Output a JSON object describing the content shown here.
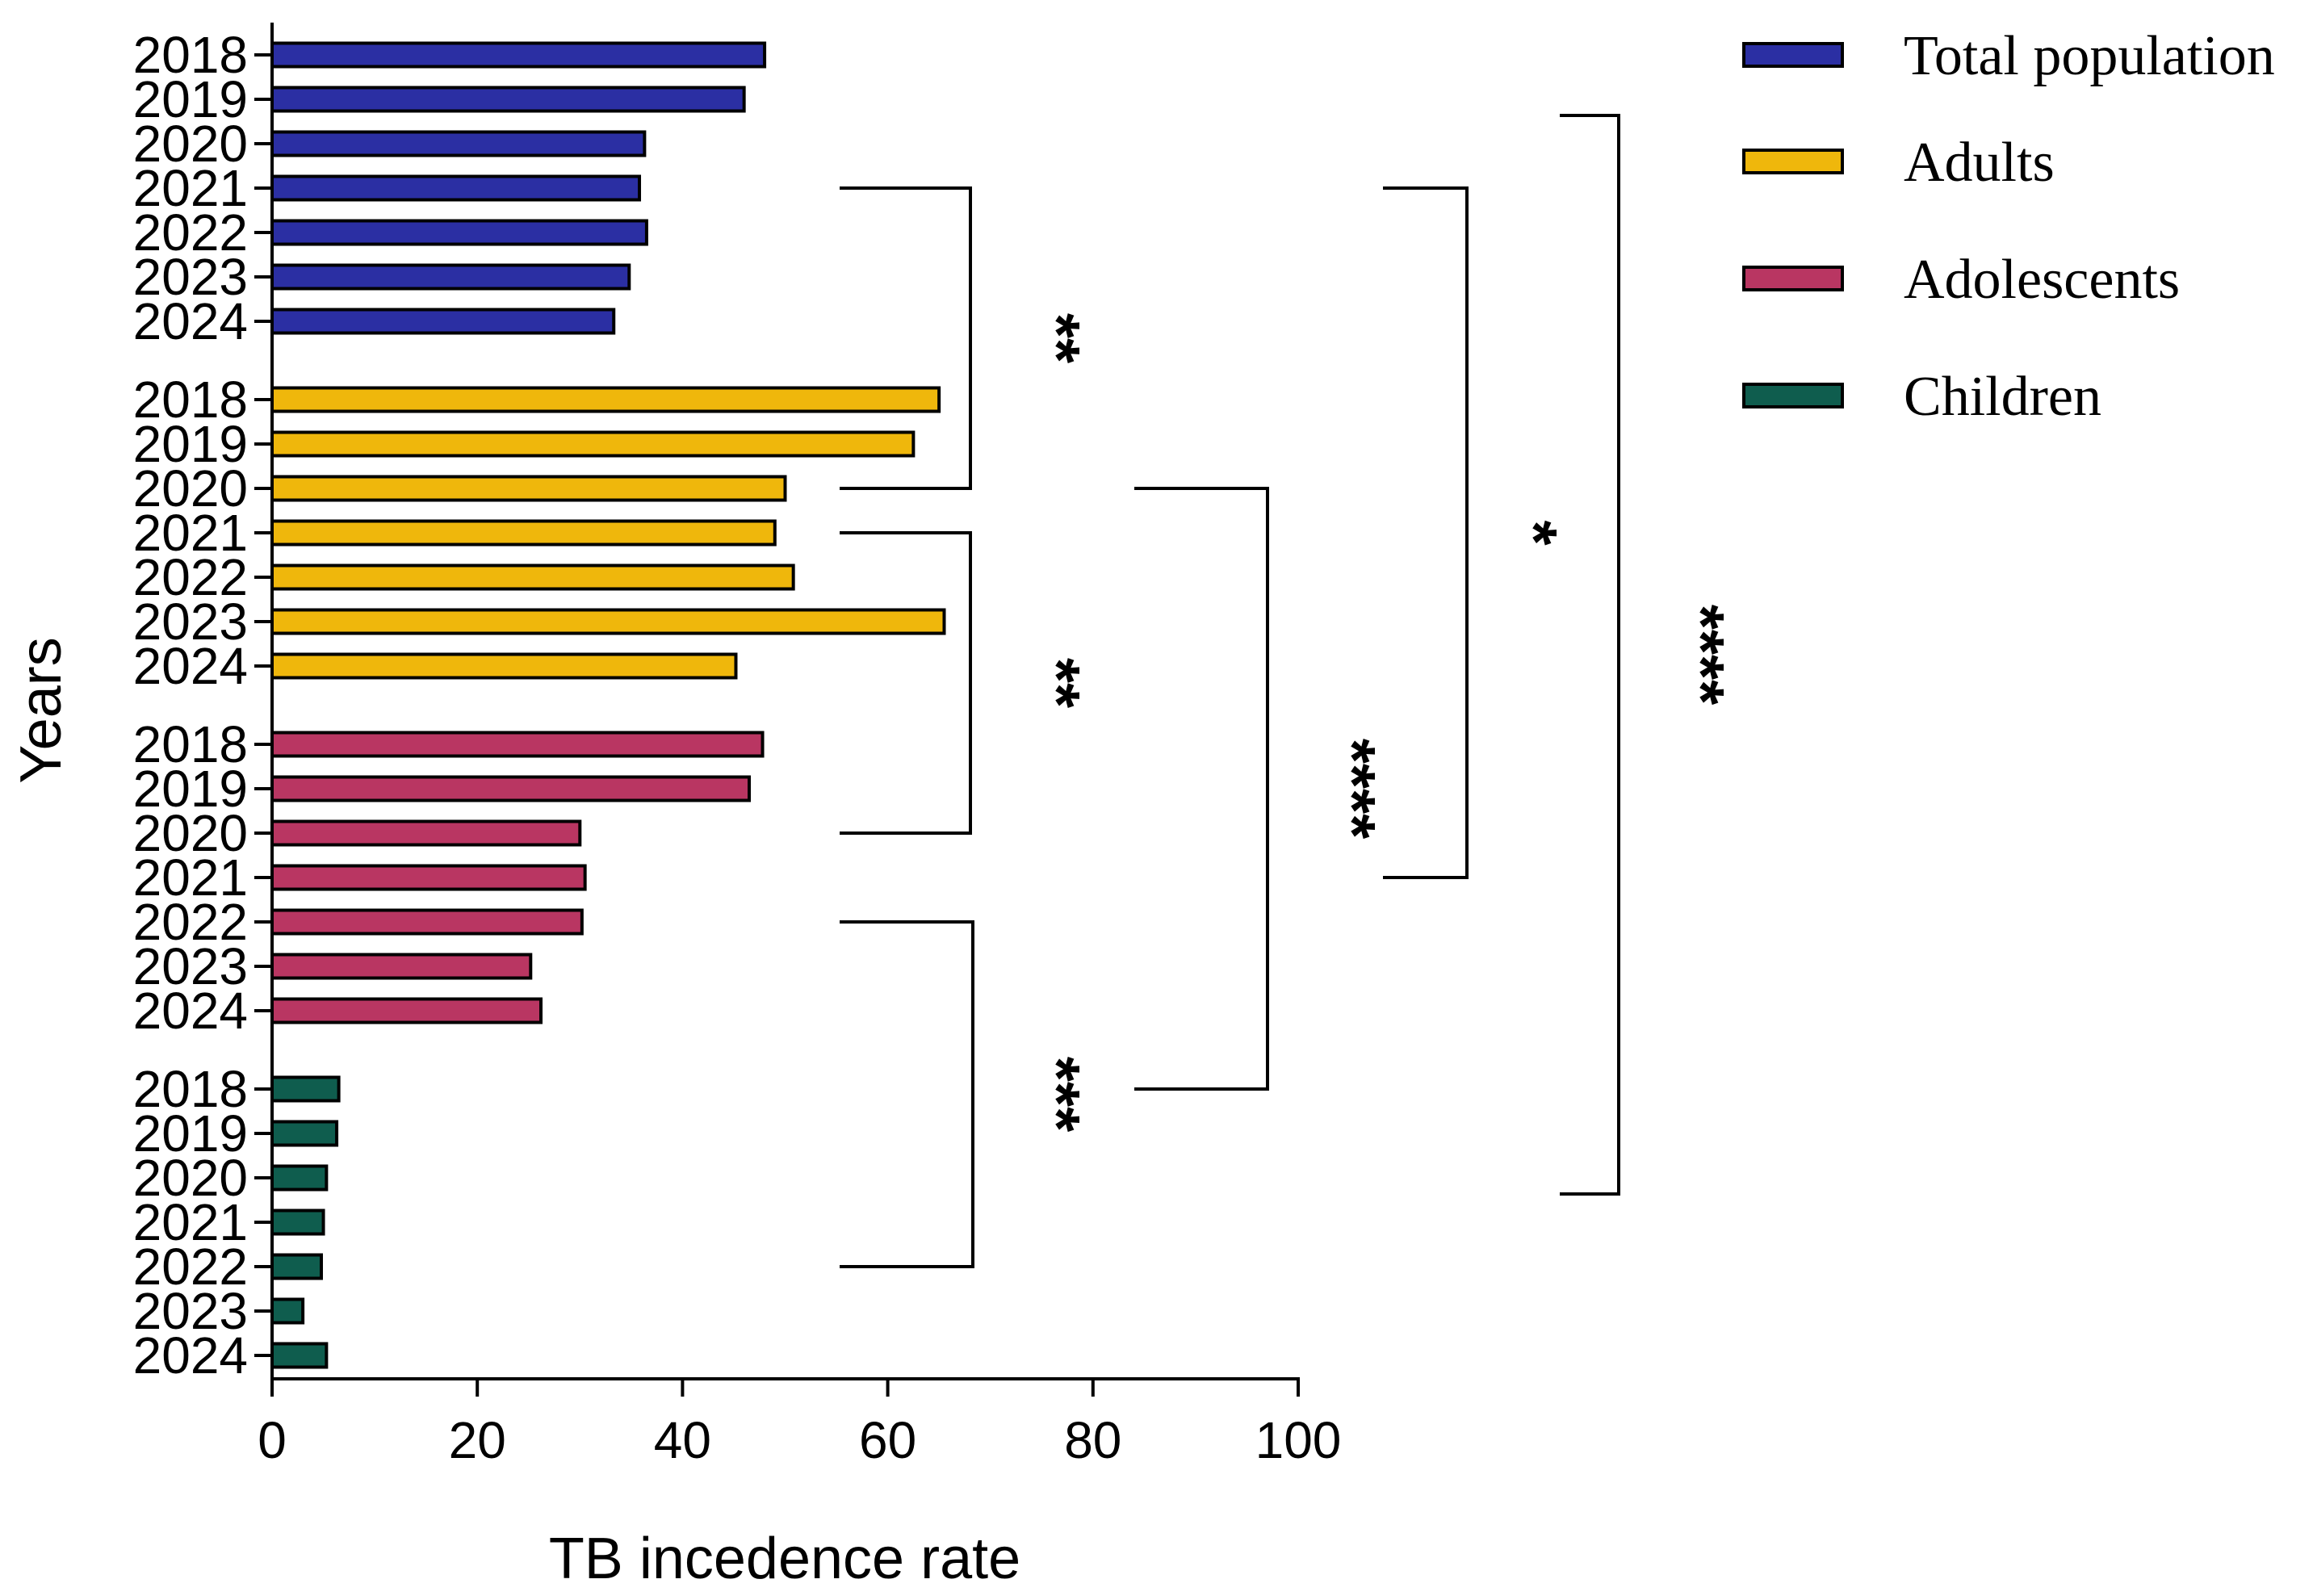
{
  "chart_data": {
    "type": "bar",
    "orientation": "horizontal",
    "title": "",
    "xlabel": "TB incedence rate",
    "ylabel": "Years",
    "xlim": [
      0,
      100
    ],
    "xticks": [
      0,
      20,
      40,
      60,
      80,
      100
    ],
    "categories": [
      "2018",
      "2019",
      "2020",
      "2021",
      "2022",
      "2023",
      "2024"
    ],
    "legend_position": "top-right",
    "series": [
      {
        "name": "Total population",
        "color": "#2b2fa3",
        "values": [
          48,
          46,
          36.3,
          35.8,
          36.5,
          34.8,
          33.3
        ]
      },
      {
        "name": "Adults",
        "color": "#efb70c",
        "values": [
          65,
          62.5,
          50,
          49,
          50.8,
          65.5,
          45.2
        ]
      },
      {
        "name": "Adolescents",
        "color": "#b93662",
        "values": [
          47.8,
          46.5,
          30,
          30.5,
          30.2,
          25.2,
          26.2
        ]
      },
      {
        "name": "Children",
        "color": "#0f5d4e",
        "values": [
          6.5,
          6.3,
          5.3,
          5,
          4.8,
          3,
          5.3
        ]
      }
    ],
    "significance": [
      {
        "label": "**",
        "from": "Total population 2021",
        "to": "Adults 2020"
      },
      {
        "label": "**",
        "from": "Adults 2021",
        "to": "Adolescents 2020"
      },
      {
        "label": "***",
        "from": "Adolescents 2022",
        "to": "Children 2022"
      },
      {
        "label": "****",
        "from": "Adults 2020",
        "to": "Children 2018"
      },
      {
        "label": "*",
        "from": "Total population 2021",
        "to": "Adolescents 2021"
      },
      {
        "label": "****",
        "from": "Total population 2020",
        "to": "Children 2020"
      }
    ]
  }
}
